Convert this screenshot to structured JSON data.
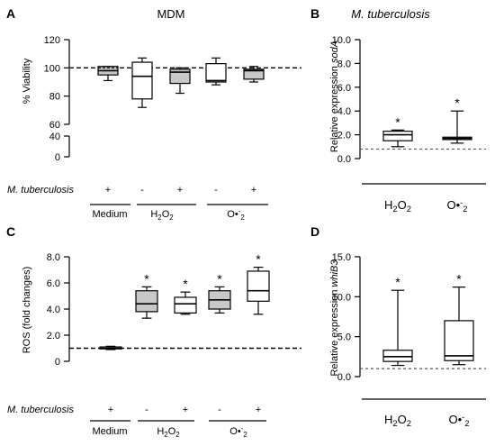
{
  "panels": [
    {
      "letter": "A",
      "title": "MDM",
      "title_italic": false,
      "ylabel": "% Viability",
      "ylabel_parts": [
        {
          "t": "% Viability",
          "i": false
        }
      ],
      "condition_row_label": "M. tuberculosis",
      "condition_marks": [
        "+",
        "-",
        "+",
        "-",
        "+"
      ],
      "groups": [
        "Medium",
        "H2O2",
        "O•-2"
      ]
    },
    {
      "letter": "B",
      "title": "M. tuberculosis",
      "title_italic": true,
      "ylabel": "Relative expression sodA",
      "ylabel_parts": [
        {
          "t": "Relative expression ",
          "i": false
        },
        {
          "t": "sodA",
          "i": true
        }
      ],
      "categories": [
        "H2O2",
        "O•-2"
      ]
    },
    {
      "letter": "C",
      "title": "",
      "title_italic": false,
      "ylabel": "ROS (fold changes)",
      "ylabel_parts": [
        {
          "t": "ROS (fold changes)",
          "i": false
        }
      ],
      "condition_row_label": "M. tuberculosis",
      "condition_marks": [
        "+",
        "-",
        "+",
        "-",
        "+"
      ],
      "groups": [
        "Medium",
        "H2O2",
        "O•-2"
      ]
    },
    {
      "letter": "D",
      "title": "",
      "title_italic": false,
      "ylabel": "Relative expression whiB3",
      "ylabel_parts": [
        {
          "t": "Relative expression ",
          "i": false
        },
        {
          "t": "whiB3",
          "i": true
        }
      ],
      "categories": [
        "H2O2",
        "O•-2"
      ]
    }
  ],
  "chart_data": [
    {
      "panel": "A",
      "type": "box",
      "title": "MDM",
      "ylabel": "% Viability",
      "y_axis_break": [
        40,
        60
      ],
      "yticks": [
        "0",
        "40",
        "60",
        "80",
        "100",
        "120"
      ],
      "reference_line": 100,
      "boxes": [
        {
          "mtb": "+",
          "group": "Medium",
          "fill": "#c8c8c8",
          "min": 91,
          "q1": 95,
          "median": 98,
          "q3": 101,
          "max": 101,
          "mean": 100
        },
        {
          "mtb": "-",
          "group": "H2O2",
          "fill": "#ffffff",
          "min": 72,
          "q1": 78,
          "median": 94,
          "q3": 104,
          "max": 107
        },
        {
          "mtb": "+",
          "group": "H2O2",
          "fill": "#c8c8c8",
          "min": 82,
          "q1": 89,
          "median": 97,
          "q3": 99,
          "max": 100
        },
        {
          "mtb": "-",
          "group": "O•-2",
          "fill": "#ffffff",
          "min": 88,
          "q1": 90,
          "median": 91,
          "q3": 103,
          "max": 107
        },
        {
          "mtb": "+",
          "group": "O•-2",
          "fill": "#c8c8c8",
          "min": 90,
          "q1": 92,
          "median": 98,
          "q3": 99,
          "max": 101
        }
      ]
    },
    {
      "panel": "B",
      "type": "box",
      "title": "M. tuberculosis",
      "ylabel": "Relative expression sodA",
      "ylim": [
        0,
        10
      ],
      "yticks": [
        "0.0",
        "2.0",
        "4.0",
        "6.0",
        "8.0",
        "10.0"
      ],
      "reference_line": 0.8,
      "categories": [
        "H2O2",
        "O•-2"
      ],
      "boxes": [
        {
          "category": "H2O2",
          "fill": "#ffffff",
          "min": 1.0,
          "q1": 1.5,
          "median": 2.0,
          "q3": 2.3,
          "max": 2.4,
          "annotation": "*"
        },
        {
          "category": "O•-2",
          "fill": "#ffffff",
          "min": 1.3,
          "q1": 1.6,
          "median": 1.7,
          "q3": 1.8,
          "max": 4.0,
          "annotation": "*"
        }
      ]
    },
    {
      "panel": "C",
      "type": "box",
      "ylabel": "ROS (fold changes)",
      "ylim": [
        0,
        8
      ],
      "yticks": [
        "0",
        "2.0",
        "4.0",
        "6.0",
        "8.0"
      ],
      "reference_line": 1.0,
      "boxes": [
        {
          "mtb": "+",
          "group": "Medium",
          "fill": "#c8c8c8",
          "min": 0.9,
          "q1": 0.95,
          "median": 1.0,
          "q3": 1.1,
          "max": 1.15
        },
        {
          "mtb": "-",
          "group": "H2O2",
          "fill": "#c8c8c8",
          "min": 3.3,
          "q1": 3.8,
          "median": 4.4,
          "q3": 5.4,
          "max": 5.7,
          "annotation": "*"
        },
        {
          "mtb": "+",
          "group": "H2O2",
          "fill": "#ffffff",
          "min": 3.6,
          "q1": 3.7,
          "median": 4.4,
          "q3": 4.9,
          "max": 5.3,
          "annotation": "*"
        },
        {
          "mtb": "-",
          "group": "O•-2",
          "fill": "#c8c8c8",
          "min": 3.7,
          "q1": 4.0,
          "median": 4.7,
          "q3": 5.4,
          "max": 5.7,
          "annotation": "*"
        },
        {
          "mtb": "+",
          "group": "O•-2",
          "fill": "#ffffff",
          "min": 3.6,
          "q1": 4.6,
          "median": 5.4,
          "q3": 6.9,
          "max": 7.2,
          "annotation": "*"
        }
      ]
    },
    {
      "panel": "D",
      "type": "box",
      "ylabel": "Relative expression whiB3",
      "ylim": [
        0,
        15
      ],
      "yticks": [
        "0.0",
        "5.0",
        "10.0",
        "15.0"
      ],
      "reference_line": 1.0,
      "categories": [
        "H2O2",
        "O•-2"
      ],
      "boxes": [
        {
          "category": "H2O2",
          "fill": "#ffffff",
          "min": 1.4,
          "q1": 1.9,
          "median": 2.5,
          "q3": 3.3,
          "max": 10.8,
          "annotation": "*"
        },
        {
          "category": "O•-2",
          "fill": "#ffffff",
          "min": 1.5,
          "q1": 2.0,
          "median": 2.6,
          "q3": 7.0,
          "max": 11.2,
          "annotation": "*"
        }
      ]
    }
  ]
}
